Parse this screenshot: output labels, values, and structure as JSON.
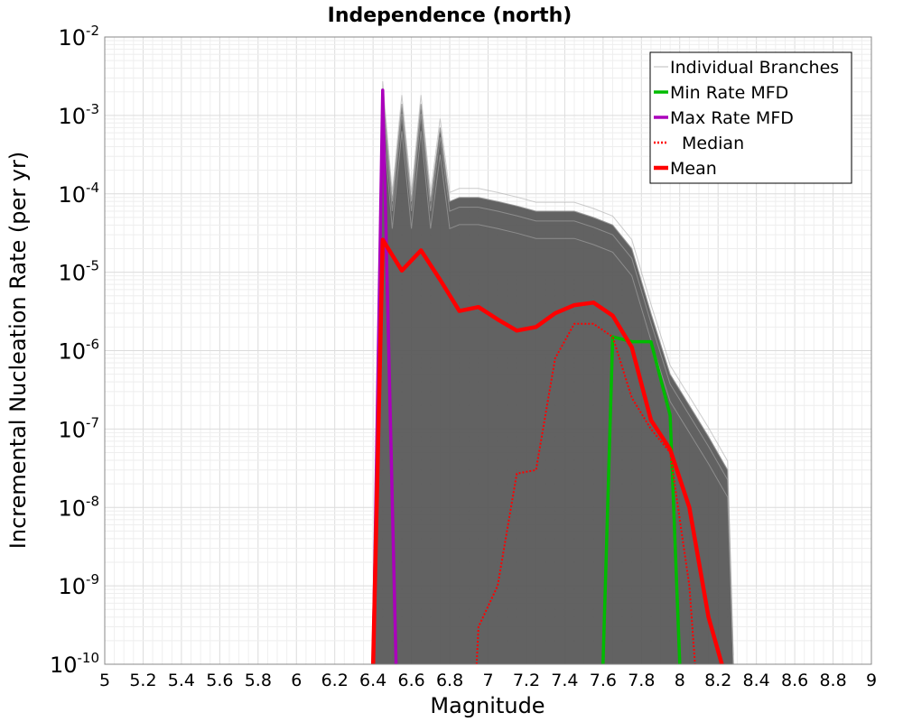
{
  "chart_data": {
    "type": "line",
    "title": "Independence (north)",
    "xlabel": "Magnitude",
    "ylabel": "Incremental Nucleation Rate (per yr)",
    "xlim": [
      5,
      9
    ],
    "ylim": [
      1e-10,
      0.01
    ],
    "yscale": "log",
    "grid": true,
    "legend_position": "top-right",
    "x_ticks": [
      "5",
      "5.2",
      "5.4",
      "5.6",
      "5.8",
      "6",
      "6.2",
      "6.4",
      "6.6",
      "6.8",
      "7",
      "7.2",
      "7.4",
      "7.6",
      "7.8",
      "8",
      "8.2",
      "8.4",
      "8.6",
      "8.8",
      "9"
    ],
    "y_ticks": [
      {
        "base": "10",
        "exp": "-2",
        "value": 0.01
      },
      {
        "base": "10",
        "exp": "-3",
        "value": 0.001
      },
      {
        "base": "10",
        "exp": "-4",
        "value": 0.0001
      },
      {
        "base": "10",
        "exp": "-5",
        "value": 1e-05
      },
      {
        "base": "10",
        "exp": "-6",
        "value": 1e-06
      },
      {
        "base": "10",
        "exp": "-7",
        "value": 1e-07
      },
      {
        "base": "10",
        "exp": "-8",
        "value": 1e-08
      },
      {
        "base": "10",
        "exp": "-9",
        "value": 1e-09
      },
      {
        "base": "10",
        "exp": "-10",
        "value": 1e-10
      }
    ],
    "series": [
      {
        "name": "Individual Branches",
        "color": "#555555",
        "style": "band",
        "upper_envelope": {
          "x": [
            6.4,
            6.45,
            6.5,
            6.55,
            6.6,
            6.65,
            6.7,
            6.75,
            6.8,
            6.85,
            6.95,
            7.05,
            7.15,
            7.25,
            7.35,
            7.45,
            7.55,
            7.65,
            7.75,
            7.85,
            7.95,
            8.05,
            8.15,
            8.25,
            8.28
          ],
          "y": [
            1e-10,
            0.0021,
            8e-05,
            0.0014,
            8e-05,
            0.0014,
            8e-05,
            0.0007,
            8e-05,
            9e-05,
            9e-05,
            8e-05,
            7e-05,
            6e-05,
            6e-05,
            6e-05,
            5e-05,
            4e-05,
            2e-05,
            3e-06,
            5e-07,
            2e-07,
            8e-08,
            3e-08,
            1e-10
          ]
        },
        "lower_envelope": {
          "x": [
            6.4,
            8.28
          ],
          "y": [
            1e-10,
            1e-10
          ]
        }
      },
      {
        "name": "Min Rate MFD",
        "color": "#00bb00",
        "style": "solid",
        "x": [
          7.6,
          7.65,
          7.75,
          7.85,
          7.95,
          8.0
        ],
        "y": [
          1e-10,
          1.5e-06,
          1.3e-06,
          1.3e-06,
          1.5e-07,
          1e-10
        ]
      },
      {
        "name": "Max Rate MFD",
        "color": "#aa00bb",
        "style": "solid",
        "x": [
          6.4,
          6.45,
          6.52
        ],
        "y": [
          1e-10,
          0.0021,
          1e-10
        ]
      },
      {
        "name": "Median",
        "color": "#ff0000",
        "style": "dotted",
        "x": [
          6.94,
          6.95,
          7.05,
          7.15,
          7.25,
          7.35,
          7.45,
          7.55,
          7.65,
          7.75,
          7.85,
          7.95,
          8.05,
          8.08
        ],
        "y": [
          1e-10,
          3e-10,
          1e-09,
          2.7e-08,
          3e-08,
          8e-07,
          2.2e-06,
          2.2e-06,
          1.5e-06,
          2.5e-07,
          1e-07,
          5e-08,
          1e-09,
          1e-10
        ]
      },
      {
        "name": "Mean",
        "color": "#ff0000",
        "style": "thick",
        "x": [
          6.4,
          6.45,
          6.55,
          6.65,
          6.75,
          6.85,
          6.95,
          7.05,
          7.15,
          7.25,
          7.35,
          7.45,
          7.55,
          7.65,
          7.75,
          7.85,
          7.95,
          8.05,
          8.15,
          8.22
        ],
        "y": [
          1e-10,
          2.6e-05,
          1.05e-05,
          1.9e-05,
          8e-06,
          3.2e-06,
          3.6e-06,
          2.5e-06,
          1.8e-06,
          2e-06,
          3e-06,
          3.8e-06,
          4.1e-06,
          2.8e-06,
          1.1e-06,
          1.3e-07,
          5.5e-08,
          1e-08,
          4e-10,
          1e-10
        ]
      }
    ]
  }
}
